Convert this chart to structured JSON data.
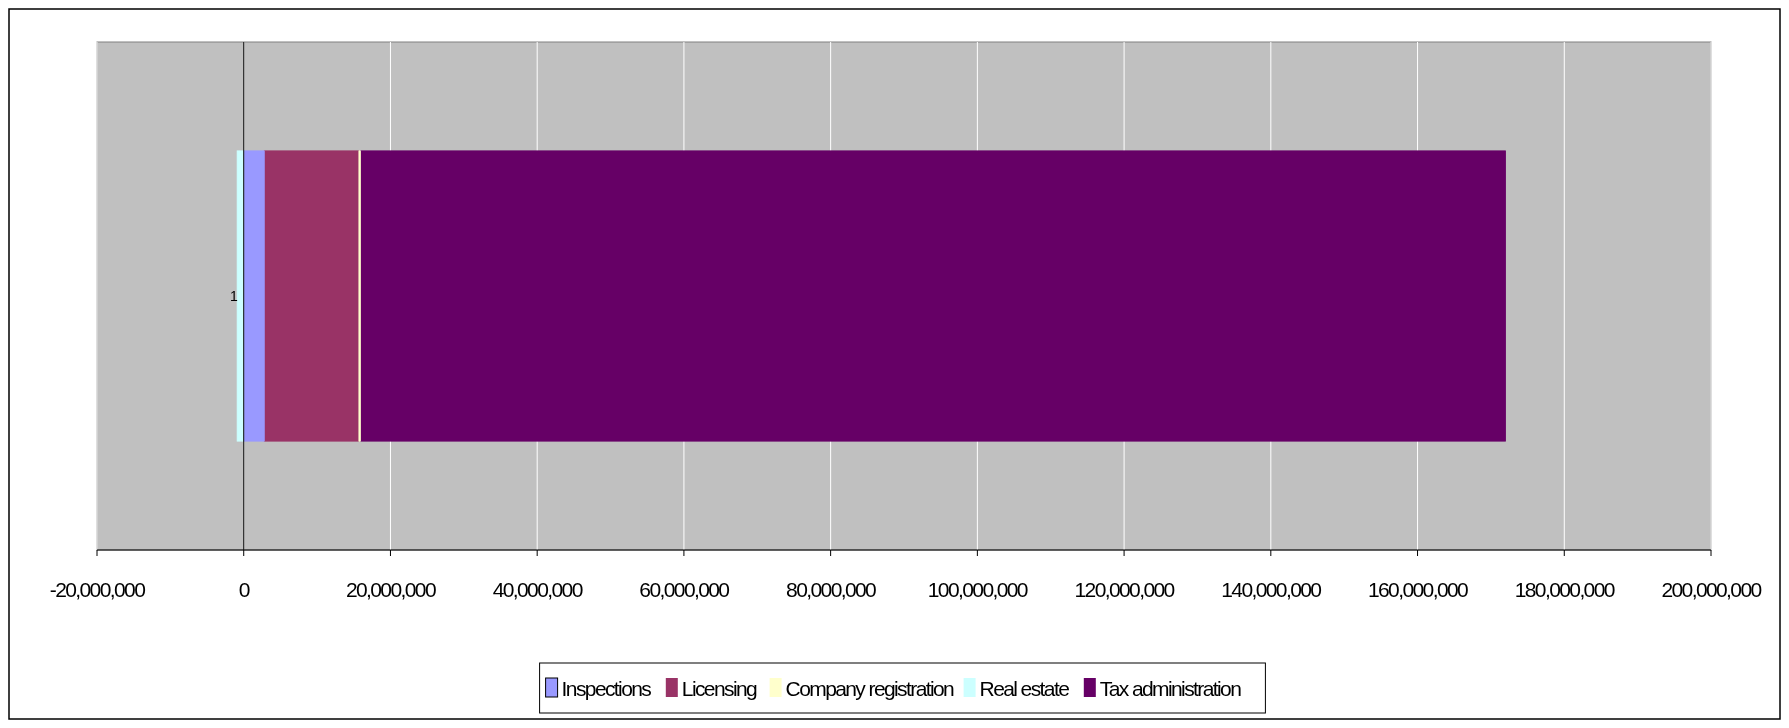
{
  "chart_data": {
    "type": "bar",
    "orientation": "horizontal",
    "stacked": true,
    "categories": [
      "1"
    ],
    "series": [
      {
        "name": "Inspections",
        "color": "#9999ff",
        "values": [
          2800000
        ]
      },
      {
        "name": "Licensing",
        "color": "#993366",
        "values": [
          12900000
        ]
      },
      {
        "name": "Company registration",
        "color": "#ffffcc",
        "values": [
          200000
        ]
      },
      {
        "name": "Real estate",
        "color": "#ccffff",
        "values": [
          -900000
        ]
      },
      {
        "name": "Tax administration",
        "color": "#660066",
        "values": [
          156100000
        ]
      }
    ],
    "xlim": [
      -20000000,
      200000000
    ],
    "xticks": [
      {
        "value": -20000000,
        "label": "-20,000,000"
      },
      0,
      {
        "value": 20000000,
        "label": "20,000,000"
      },
      {
        "value": 40000000,
        "label": "40,000,000"
      },
      {
        "value": 60000000,
        "label": "60,000,000"
      },
      {
        "value": 80000000,
        "label": "80,000,000"
      },
      {
        "value": 100000000,
        "label": "100,000,000"
      },
      {
        "value": 120000000,
        "label": "120,000,000"
      },
      {
        "value": 140000000,
        "label": "140,000,000"
      },
      {
        "value": 160000000,
        "label": "160,000,000"
      },
      {
        "value": 180000000,
        "label": "180,000,000"
      },
      {
        "value": 200000000,
        "label": "200,000,000"
      }
    ],
    "grid": "x",
    "legend": "bottom"
  }
}
